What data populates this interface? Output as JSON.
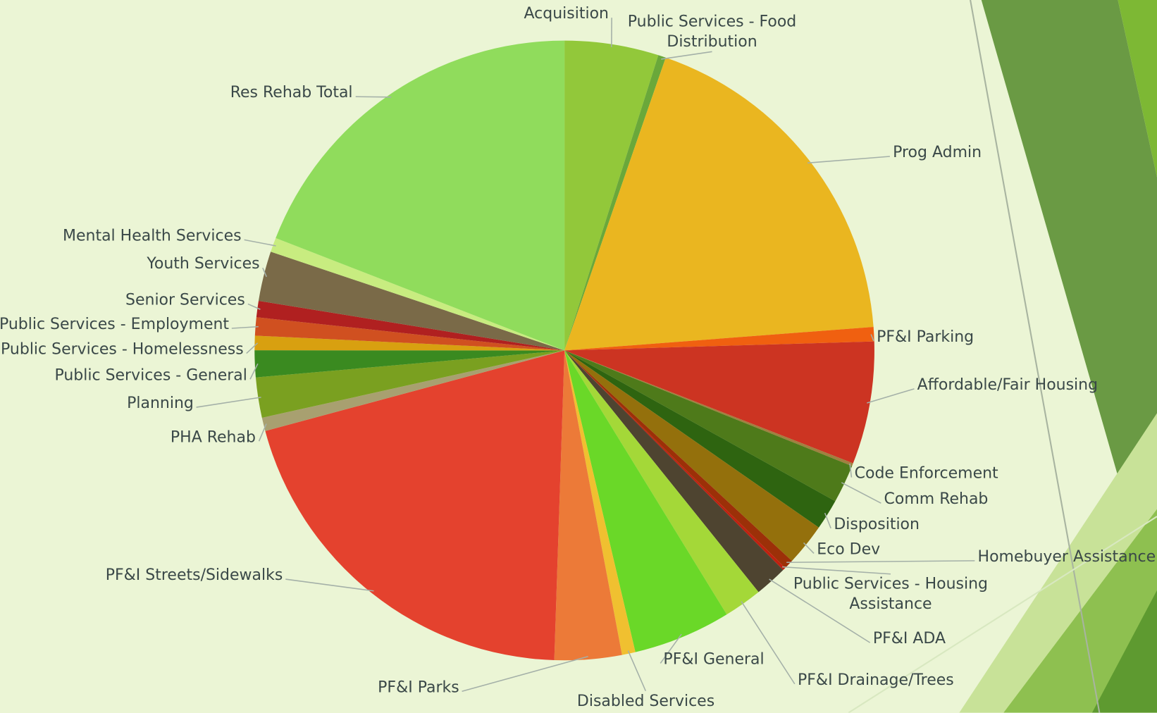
{
  "chart_data": {
    "type": "pie",
    "categories": [
      "Acquisition",
      "Public Services - Food Distribution",
      "Prog Admin",
      "PF&I Parking",
      "Affordable/Fair Housing",
      "Code Enforcement",
      "Comm Rehab",
      "Disposition",
      "Eco Dev",
      "Homebuyer Assistance",
      "Public Services - Housing Assistance",
      "PF&I ADA",
      "PF&I Drainage/Trees",
      "PF&I General",
      "Disabled Services",
      "PF&I Parks",
      "PF&I Streets/Sidewalks",
      "PHA Rehab",
      "Planning",
      "Public Services - General",
      "Public Services - Homelessness",
      "Public Services - Employment",
      "Senior Services",
      "Youth Services",
      "Mental Health Services",
      "Res Rehab Total"
    ],
    "values": [
      4.9,
      0.4,
      18.5,
      0.75,
      6.4,
      0.15,
      2.0,
      1.6,
      2.2,
      0.5,
      0.15,
      1.7,
      2.0,
      5.1,
      0.7,
      3.5,
      20.3,
      0.7,
      2.1,
      1.4,
      0.75,
      0.95,
      0.85,
      2.6,
      0.75,
      19.1
    ],
    "colors": [
      "#92c83a",
      "#6aa83a",
      "#eab620",
      "#f06010",
      "#cc3422",
      "#a08040",
      "#4e7a1a",
      "#2e6410",
      "#94700c",
      "#9c3008",
      "#c02010",
      "#4e4430",
      "#a4d838",
      "#6ad828",
      "#f0c030",
      "#ec7a38",
      "#e4422e",
      "#a8a070",
      "#7aa020",
      "#3a8a20",
      "#d8a010",
      "#d05020",
      "#b02020",
      "#7a6a48",
      "#c8ec80",
      "#90dc5c"
    ]
  }
}
